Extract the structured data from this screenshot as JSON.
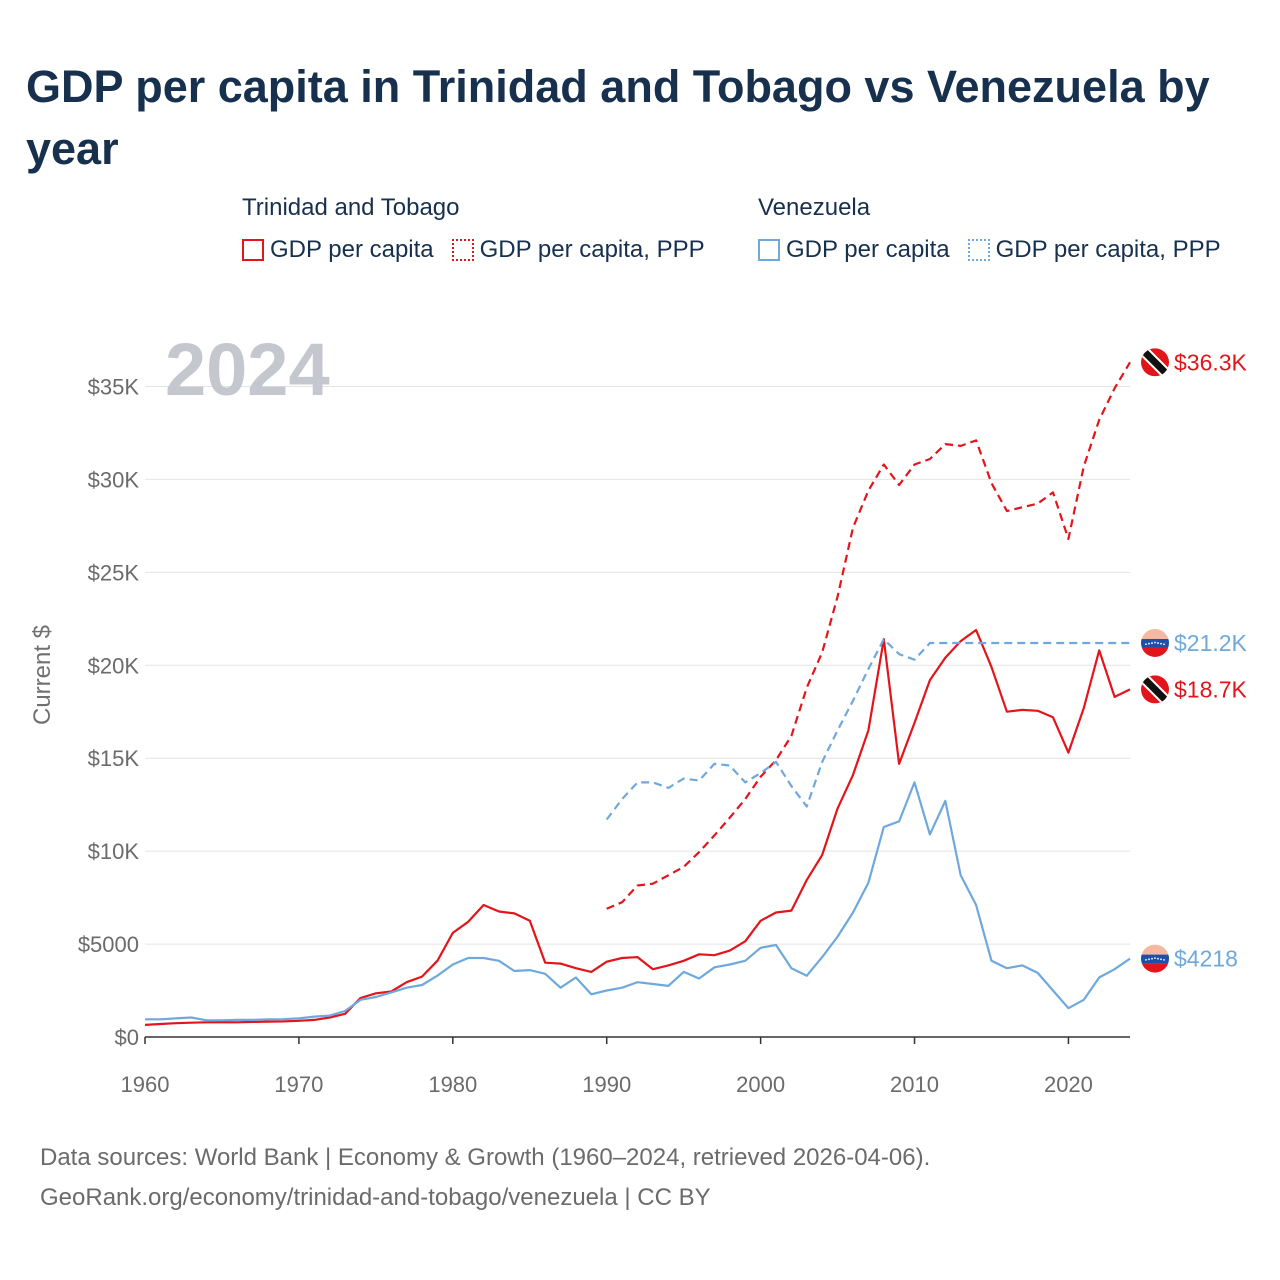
{
  "title": "GDP per capita in Trinidad and Tobago vs Venezuela by year",
  "legend": {
    "groups": [
      {
        "name": "Trinidad and Tobago",
        "items": [
          "GDP per capita",
          "GDP per capita, PPP"
        ],
        "color": "#e3151b"
      },
      {
        "name": "Venezuela",
        "items": [
          "GDP per capita",
          "GDP per capita, PPP"
        ],
        "color": "#6fa8dc"
      }
    ]
  },
  "year_watermark": "2024",
  "sources": {
    "line1": "Data sources: World Bank | Economy & Growth (1960–2024, retrieved 2026-04-06).",
    "line2": "GeoRank.org/economy/trinidad-and-tobago/venezuela | CC BY"
  },
  "chart_data": {
    "type": "line",
    "title": "GDP per capita in Trinidad and Tobago vs Venezuela by year",
    "ylabel": "Current $",
    "xlabel": "",
    "xlim": [
      1960,
      2024
    ],
    "ylim": [
      0,
      37500
    ],
    "xticks": [
      1960,
      1970,
      1980,
      1990,
      2000,
      2010,
      2020
    ],
    "xtick_labels": [
      "1960",
      "1970",
      "1980",
      "1990",
      "2000",
      "2010",
      "2020"
    ],
    "yticks": [
      0,
      5000,
      10000,
      15000,
      20000,
      25000,
      30000,
      35000
    ],
    "ytick_labels": [
      "$0",
      "$5000",
      "$10K",
      "$15K",
      "$20K",
      "$25K",
      "$30K",
      "$35K"
    ],
    "series": [
      {
        "name": "Trinidad and Tobago GDP per capita",
        "color": "#e3151b",
        "dash": "solid",
        "end_label": "$18.7K",
        "x": [
          1960,
          1961,
          1962,
          1963,
          1964,
          1965,
          1966,
          1967,
          1968,
          1969,
          1970,
          1971,
          1972,
          1973,
          1974,
          1975,
          1976,
          1977,
          1978,
          1979,
          1980,
          1981,
          1982,
          1983,
          1984,
          1985,
          1986,
          1987,
          1988,
          1989,
          1990,
          1991,
          1992,
          1993,
          1994,
          1995,
          1996,
          1997,
          1998,
          1999,
          2000,
          2001,
          2002,
          2003,
          2004,
          2005,
          2006,
          2007,
          2008,
          2009,
          2010,
          2011,
          2012,
          2013,
          2014,
          2015,
          2016,
          2017,
          2018,
          2019,
          2020,
          2021,
          2022,
          2023,
          2024
        ],
        "values": [
          650,
          700,
          740,
          770,
          790,
          800,
          790,
          810,
          830,
          840,
          870,
          920,
          1050,
          1250,
          2100,
          2350,
          2450,
          2950,
          3250,
          4100,
          5600,
          6200,
          7100,
          6750,
          6650,
          6250,
          4000,
          3950,
          3700,
          3500,
          4050,
          4250,
          4300,
          3650,
          3850,
          4100,
          4450,
          4400,
          4650,
          5150,
          6250,
          6700,
          6800,
          8450,
          9800,
          12300,
          14100,
          16500,
          21400,
          14700,
          16900,
          19200,
          20400,
          21300,
          21900,
          19900,
          17500,
          17600,
          17550,
          17200,
          15300,
          17700,
          20800,
          18300,
          18700
        ]
      },
      {
        "name": "Trinidad and Tobago GDP per capita, PPP",
        "color": "#e3151b",
        "dash": "dashed",
        "end_label": "$36.3K",
        "x": [
          1990,
          1991,
          1992,
          1993,
          1994,
          1995,
          1996,
          1997,
          1998,
          1999,
          2000,
          2001,
          2002,
          2003,
          2004,
          2005,
          2006,
          2007,
          2008,
          2009,
          2010,
          2011,
          2012,
          2013,
          2014,
          2015,
          2016,
          2017,
          2018,
          2019,
          2020,
          2021,
          2022,
          2023,
          2024
        ],
        "values": [
          6900,
          7250,
          8150,
          8250,
          8700,
          9150,
          9950,
          10850,
          11800,
          12800,
          14000,
          14900,
          16200,
          18800,
          20700,
          23700,
          27400,
          29400,
          30800,
          29700,
          30800,
          31100,
          31900,
          31800,
          32100,
          29800,
          28300,
          28500,
          28700,
          29300,
          26800,
          30700,
          33200,
          34900,
          36300
        ]
      },
      {
        "name": "Venezuela GDP per capita",
        "color": "#6fa8dc",
        "dash": "solid",
        "end_label": "$4218",
        "x": [
          1960,
          1961,
          1962,
          1963,
          1964,
          1965,
          1966,
          1967,
          1968,
          1969,
          1970,
          1971,
          1972,
          1973,
          1974,
          1975,
          1976,
          1977,
          1978,
          1979,
          1980,
          1981,
          1982,
          1983,
          1984,
          1985,
          1986,
          1987,
          1988,
          1989,
          1990,
          1991,
          1992,
          1993,
          1994,
          1995,
          1996,
          1997,
          1998,
          1999,
          2000,
          2001,
          2002,
          2003,
          2004,
          2005,
          2006,
          2007,
          2008,
          2009,
          2010,
          2011,
          2012,
          2013,
          2014,
          2015,
          2016,
          2017,
          2018,
          2019,
          2020,
          2021,
          2022,
          2023,
          2024
        ],
        "values": [
          950,
          950,
          1000,
          1050,
          900,
          900,
          920,
          920,
          950,
          960,
          1000,
          1100,
          1150,
          1400,
          2000,
          2150,
          2400,
          2650,
          2800,
          3300,
          3900,
          4250,
          4250,
          4100,
          3550,
          3600,
          3400,
          2650,
          3200,
          2300,
          2500,
          2650,
          2950,
          2850,
          2750,
          3500,
          3150,
          3750,
          3900,
          4100,
          4800,
          4950,
          3700,
          3300,
          4300,
          5400,
          6700,
          8300,
          11300,
          11600,
          13700,
          10900,
          12700,
          8700,
          7100,
          4100,
          3700,
          3850,
          3450,
          2500,
          1550,
          2000,
          3200,
          3650,
          4218
        ]
      },
      {
        "name": "Venezuela GDP per capita, PPP",
        "color": "#6fa8dc",
        "dash": "dashed",
        "end_label": "$21.2K",
        "x": [
          1990,
          1991,
          1992,
          1993,
          1994,
          1995,
          1996,
          1997,
          1998,
          1999,
          2000,
          2001,
          2002,
          2003,
          2004,
          2005,
          2006,
          2007,
          2008,
          2009,
          2010,
          2011,
          2012,
          2013,
          2014,
          2015,
          2016,
          2017,
          2018,
          2019,
          2020,
          2021,
          2022,
          2023,
          2024
        ],
        "values": [
          11700,
          12800,
          13700,
          13700,
          13400,
          13900,
          13800,
          14700,
          14600,
          13700,
          14200,
          14800,
          13500,
          12400,
          14800,
          16500,
          18100,
          19800,
          21400,
          20600,
          20300,
          21200,
          21200,
          21200,
          21200,
          21200,
          21200,
          21200,
          21200,
          21200,
          21200,
          21200,
          21200,
          21200,
          21200
        ]
      }
    ]
  }
}
